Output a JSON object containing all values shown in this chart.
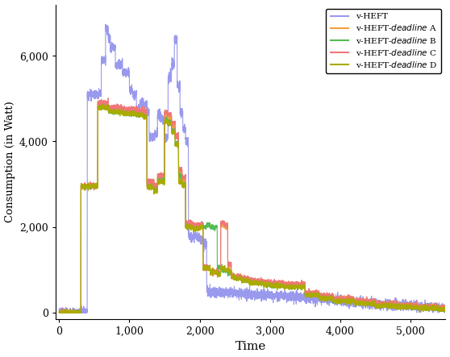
{
  "title": "",
  "xlabel": "Time",
  "ylabel": "Consumption (in Watt)",
  "xlim": [
    -50,
    5500
  ],
  "ylim": [
    -150,
    7200
  ],
  "xticks": [
    0,
    1000,
    2000,
    3000,
    4000,
    5000
  ],
  "yticks": [
    0,
    2000,
    4000,
    6000
  ],
  "colors": {
    "v_heft": "#9999ee",
    "deadline_A": "#f5a040",
    "deadline_B": "#55bb55",
    "deadline_C": "#ee7777",
    "deadline_D": "#aaaa00"
  },
  "legend_labels": [
    "v-HEFT",
    "v-HEFT-$\\it{deadline}$ A",
    "v-HEFT-$\\it{deadline}$ B",
    "v-HEFT-$\\it{deadline}$ C",
    "v-HEFT-$\\it{deadline}$ D"
  ],
  "background_color": "#ffffff",
  "font_family": "DejaVu Serif"
}
